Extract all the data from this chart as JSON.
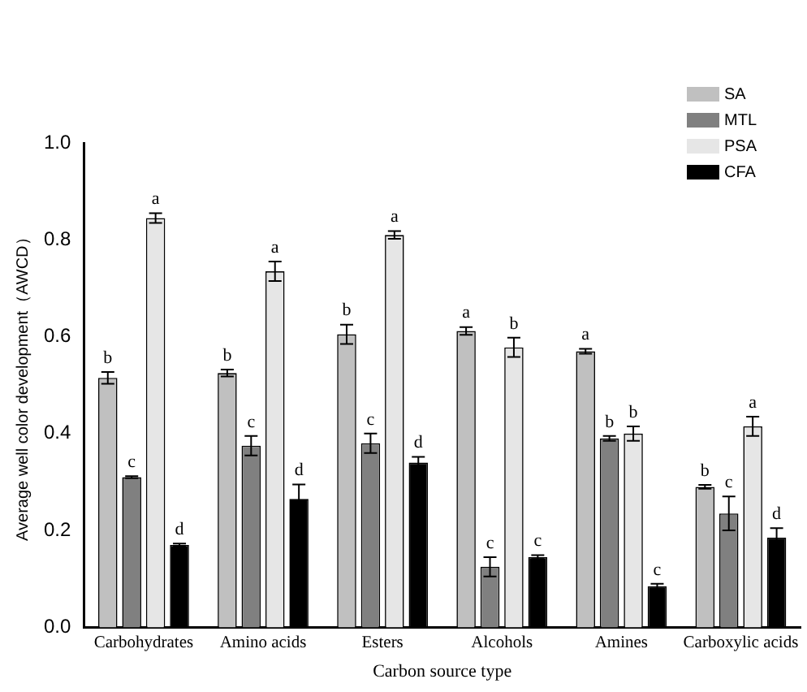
{
  "chart_data": {
    "type": "bar",
    "xlabel": "Carbon source type",
    "ylabel": "Average well color development（AWCD）",
    "categories": [
      "Carbohydrates",
      "Amino acids",
      "Esters",
      "Alcohols",
      "Amines",
      "Carboxylic acids"
    ],
    "series": [
      {
        "name": "SA",
        "color": "#c0c0c0",
        "values": [
          0.515,
          0.525,
          0.605,
          0.612,
          0.57,
          0.29
        ],
        "errors": [
          0.012,
          0.007,
          0.02,
          0.008,
          0.005,
          0.004
        ]
      },
      {
        "name": "MTL",
        "color": "#808080",
        "values": [
          0.31,
          0.375,
          0.38,
          0.125,
          0.39,
          0.235
        ],
        "errors": [
          0.002,
          0.02,
          0.02,
          0.02,
          0.005,
          0.035
        ]
      },
      {
        "name": "PSA",
        "color": "#e6e6e6",
        "values": [
          0.845,
          0.735,
          0.81,
          0.578,
          0.4,
          0.415
        ],
        "errors": [
          0.01,
          0.02,
          0.008,
          0.02,
          0.015,
          0.02
        ]
      },
      {
        "name": "CFA",
        "color": "#000000",
        "values": [
          0.17,
          0.265,
          0.34,
          0.145,
          0.085,
          0.185
        ],
        "errors": [
          0.003,
          0.03,
          0.012,
          0.004,
          0.005,
          0.02
        ]
      }
    ],
    "ylim": [
      0,
      1
    ],
    "yticks": [
      {
        "value": 0,
        "label": "0.0"
      },
      {
        "value": 0.2,
        "label": "0.2"
      },
      {
        "value": 0.4,
        "label": "0.4"
      },
      {
        "value": 0.6,
        "label": "0.6"
      },
      {
        "value": 0.8,
        "label": "0.8"
      },
      {
        "value": 1,
        "label": "1.0"
      }
    ],
    "grid": false,
    "legend": "top right",
    "annotations": [
      "b",
      "c",
      "a",
      "d",
      "b",
      "c",
      "a",
      "d",
      "b",
      "c",
      "a",
      "d",
      "a",
      "c",
      "b",
      "c",
      "a",
      "b",
      "b",
      "c",
      "b",
      "c",
      "a",
      "d"
    ]
  }
}
